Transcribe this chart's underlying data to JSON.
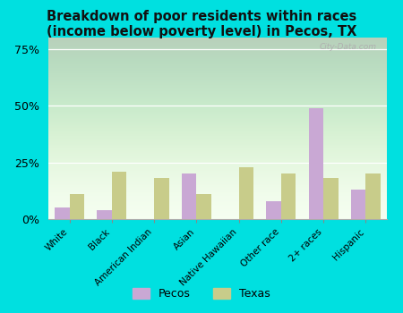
{
  "title": "Breakdown of poor residents within races\n(income below poverty level) in Pecos, TX",
  "categories": [
    "White",
    "Black",
    "American Indian",
    "Asian",
    "Native Hawaiian",
    "Other race",
    "2+ races",
    "Hispanic"
  ],
  "pecos_values": [
    5,
    4,
    0,
    20,
    0,
    8,
    49,
    13
  ],
  "texas_values": [
    11,
    21,
    18,
    11,
    23,
    20,
    18,
    20
  ],
  "pecos_color": "#c9a8d4",
  "texas_color": "#c8cc8a",
  "outer_bg": "#00e0e0",
  "plot_bg_top": "#d8f0d0",
  "plot_bg_bottom": "#f5fff0",
  "yticks": [
    0,
    25,
    50,
    75
  ],
  "ylim": [
    0,
    80
  ],
  "watermark": "City-Data.com",
  "legend_pecos": "Pecos",
  "legend_texas": "Texas",
  "title_fontsize": 10.5,
  "bar_width": 0.35
}
